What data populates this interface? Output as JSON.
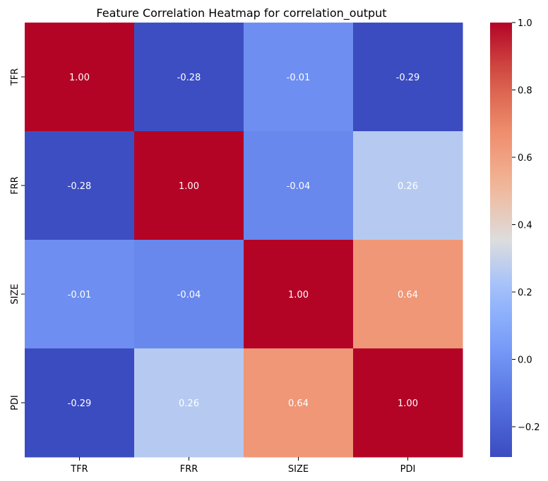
{
  "chart_data": {
    "type": "heatmap",
    "title": "Feature Correlation Heatmap for correlation_output",
    "xlabel": "",
    "ylabel": "",
    "x_categories": [
      "TFR",
      "FRR",
      "SIZE",
      "PDI"
    ],
    "y_categories": [
      "TFR",
      "FRR",
      "SIZE",
      "PDI"
    ],
    "values": [
      [
        1.0,
        -0.28,
        -0.01,
        -0.29
      ],
      [
        -0.28,
        1.0,
        -0.04,
        0.26
      ],
      [
        -0.01,
        -0.04,
        1.0,
        0.64
      ],
      [
        -0.29,
        0.26,
        0.64,
        1.0
      ]
    ],
    "cell_labels": [
      [
        "1.00",
        "-0.28",
        "-0.01",
        "-0.29"
      ],
      [
        "-0.28",
        "1.00",
        "-0.04",
        "0.26"
      ],
      [
        "-0.01",
        "-0.04",
        "1.00",
        "0.64"
      ],
      [
        "-0.29",
        "0.26",
        "0.64",
        "1.00"
      ]
    ],
    "colormap": "coolwarm",
    "color_range": [
      -0.29,
      1.0
    ],
    "colorbar_ticks": [
      1.0,
      0.8,
      0.6,
      0.4,
      0.2,
      0.0,
      -0.2
    ],
    "colorbar_tick_labels": [
      "1.0",
      "0.8",
      "0.6",
      "0.4",
      "0.2",
      "0.0",
      "−0.2"
    ],
    "legend": "colorbar-right",
    "grid": false
  }
}
